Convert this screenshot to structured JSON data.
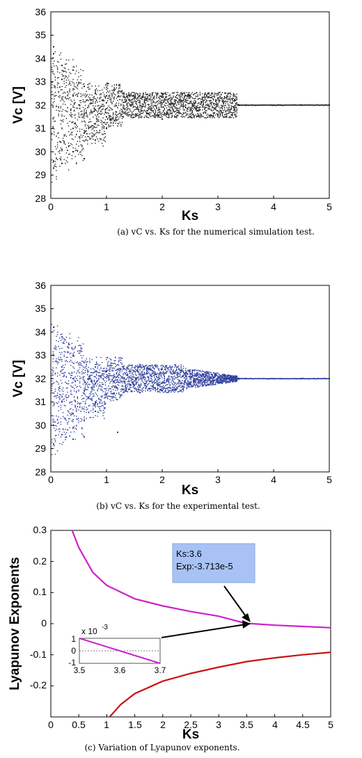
{
  "chart_data": [
    {
      "type": "scatter",
      "title": "",
      "xlabel": "Ks",
      "ylabel": "Vc  [V]",
      "xlim": [
        0,
        5
      ],
      "ylim": [
        28,
        36
      ],
      "x_ticks": [
        "0",
        "1",
        "2",
        "3",
        "4",
        "5"
      ],
      "y_ticks": [
        "28",
        "29",
        "30",
        "31",
        "32",
        "33",
        "34",
        "35",
        "36"
      ],
      "grid": false,
      "marker_color": "#222222",
      "series": [
        {
          "values": [
            [
              0.05,
              34.5
            ],
            [
              0.05,
              34.2
            ],
            [
              0.05,
              29.6
            ],
            [
              0.05,
              29.3
            ],
            [
              0.2,
              33.7
            ],
            [
              0.2,
              29.5
            ],
            [
              0.2,
              30.1
            ],
            [
              0.2,
              33.1
            ],
            [
              0.4,
              33.5
            ],
            [
              0.4,
              30.0
            ],
            [
              0.4,
              32.4
            ],
            [
              0.4,
              31.0
            ],
            [
              0.6,
              32.8
            ],
            [
              0.6,
              30.8
            ],
            [
              0.6,
              31.6
            ],
            [
              0.6,
              29.7
            ],
            [
              0.8,
              32.5
            ],
            [
              0.8,
              31.2
            ],
            [
              0.8,
              31.8
            ],
            [
              0.8,
              30.5
            ],
            [
              1.0,
              32.4
            ],
            [
              1.0,
              31.5
            ],
            [
              1.0,
              32.1
            ],
            [
              1.0,
              31.0
            ],
            [
              1.3,
              32.5
            ],
            [
              1.3,
              31.5
            ],
            [
              1.6,
              32.4
            ],
            [
              1.6,
              31.6
            ],
            [
              2.0,
              32.5
            ],
            [
              2.0,
              31.4
            ],
            [
              2.5,
              32.4
            ],
            [
              2.5,
              31.5
            ],
            [
              3.0,
              32.3
            ],
            [
              3.0,
              31.6
            ],
            [
              3.3,
              32.2
            ],
            [
              3.3,
              31.8
            ],
            [
              3.5,
              32.0
            ],
            [
              4.0,
              32.0
            ],
            [
              4.5,
              32.0
            ],
            [
              5.0,
              32.0
            ]
          ]
        }
      ],
      "caption": "(a)  vC  vs. Ks for the numerical simulation test."
    },
    {
      "type": "scatter",
      "title": "",
      "xlabel": "Ks",
      "ylabel": "Vc  [V]",
      "xlim": [
        0,
        5
      ],
      "ylim": [
        28,
        36
      ],
      "x_ticks": [
        "0",
        "1",
        "2",
        "3",
        "4",
        "5"
      ],
      "y_ticks": [
        "28",
        "29",
        "30",
        "31",
        "32",
        "33",
        "34",
        "35",
        "36"
      ],
      "grid": false,
      "marker_color": "#2a3a9a",
      "series": [
        {
          "values": [
            [
              0.05,
              34.2
            ],
            [
              0.05,
              29.2
            ],
            [
              0.05,
              30.0
            ],
            [
              0.05,
              33.0
            ],
            [
              0.2,
              33.8
            ],
            [
              0.2,
              29.6
            ],
            [
              0.2,
              31.0
            ],
            [
              0.2,
              32.5
            ],
            [
              0.4,
              33.0
            ],
            [
              0.4,
              29.4
            ],
            [
              0.4,
              32.0
            ],
            [
              0.4,
              30.5
            ],
            [
              0.6,
              32.7
            ],
            [
              0.6,
              30.2
            ],
            [
              0.6,
              31.5
            ],
            [
              0.6,
              29.5
            ],
            [
              0.8,
              32.5
            ],
            [
              0.8,
              31.0
            ],
            [
              0.8,
              31.8
            ],
            [
              0.8,
              30.6
            ],
            [
              1.0,
              32.3
            ],
            [
              1.0,
              31.3
            ],
            [
              1.2,
              29.7
            ],
            [
              1.2,
              32.4
            ],
            [
              1.6,
              32.6
            ],
            [
              1.6,
              31.4
            ],
            [
              2.0,
              32.4
            ],
            [
              2.0,
              31.5
            ],
            [
              2.5,
              32.2
            ],
            [
              2.5,
              31.8
            ],
            [
              3.0,
              32.0
            ],
            [
              3.5,
              32.0
            ],
            [
              4.0,
              32.0
            ],
            [
              4.5,
              32.0
            ],
            [
              5.0,
              32.0
            ]
          ]
        }
      ],
      "caption": "(b)  vC  vs. Ks for the experimental test."
    },
    {
      "type": "line",
      "title": "",
      "xlabel": "Ks",
      "ylabel": "Lyapunov Exponents",
      "xlim": [
        0,
        5
      ],
      "ylim": [
        -0.3,
        0.3
      ],
      "x_ticks": [
        "0",
        "0.5",
        "1",
        "1.5",
        "2",
        "2.5",
        "3",
        "3.5",
        "4",
        "4.5",
        "5"
      ],
      "y_ticks": [
        "-0.2",
        "-0.1",
        "0",
        "0.1",
        "0.2",
        "0.3"
      ],
      "grid": false,
      "series": [
        {
          "color": "#cc22cc",
          "values": [
            [
              0.38,
              0.3
            ],
            [
              0.5,
              0.245
            ],
            [
              0.75,
              0.165
            ],
            [
              1.0,
              0.123
            ],
            [
              1.5,
              0.08
            ],
            [
              2.0,
              0.057
            ],
            [
              2.5,
              0.039
            ],
            [
              3.0,
              0.024
            ],
            [
              3.5,
              0.0
            ],
            [
              3.6,
              0.0
            ],
            [
              4.0,
              -0.005
            ],
            [
              4.5,
              -0.009
            ],
            [
              5.0,
              -0.013
            ]
          ]
        },
        {
          "color": "#cc1111",
          "values": [
            [
              1.05,
              -0.3
            ],
            [
              1.25,
              -0.26
            ],
            [
              1.5,
              -0.225
            ],
            [
              2.0,
              -0.185
            ],
            [
              2.5,
              -0.16
            ],
            [
              3.0,
              -0.14
            ],
            [
              3.5,
              -0.122
            ],
            [
              4.0,
              -0.11
            ],
            [
              4.5,
              -0.1
            ],
            [
              5.0,
              -0.092
            ]
          ]
        }
      ],
      "annotation": {
        "line1": "Ks:3.6",
        "line2": "Exp:-3.713e-5",
        "x": 3.6,
        "y": 0.0
      },
      "inset": {
        "exponent_label": "x 10",
        "exponent_power": "-3",
        "x_ticks": [
          "3.5",
          "3.6",
          "3.7"
        ],
        "y_ticks": [
          "1",
          "0",
          "-1"
        ],
        "xlim": [
          3.5,
          3.7
        ],
        "ylim": [
          -1,
          1
        ],
        "series": [
          {
            "color": "#cc22cc",
            "values": [
              [
                3.5,
                1.0
              ],
              [
                3.7,
                -1.25
              ]
            ]
          }
        ]
      },
      "caption": "(c) Variation of Lyapunov exponents."
    }
  ]
}
